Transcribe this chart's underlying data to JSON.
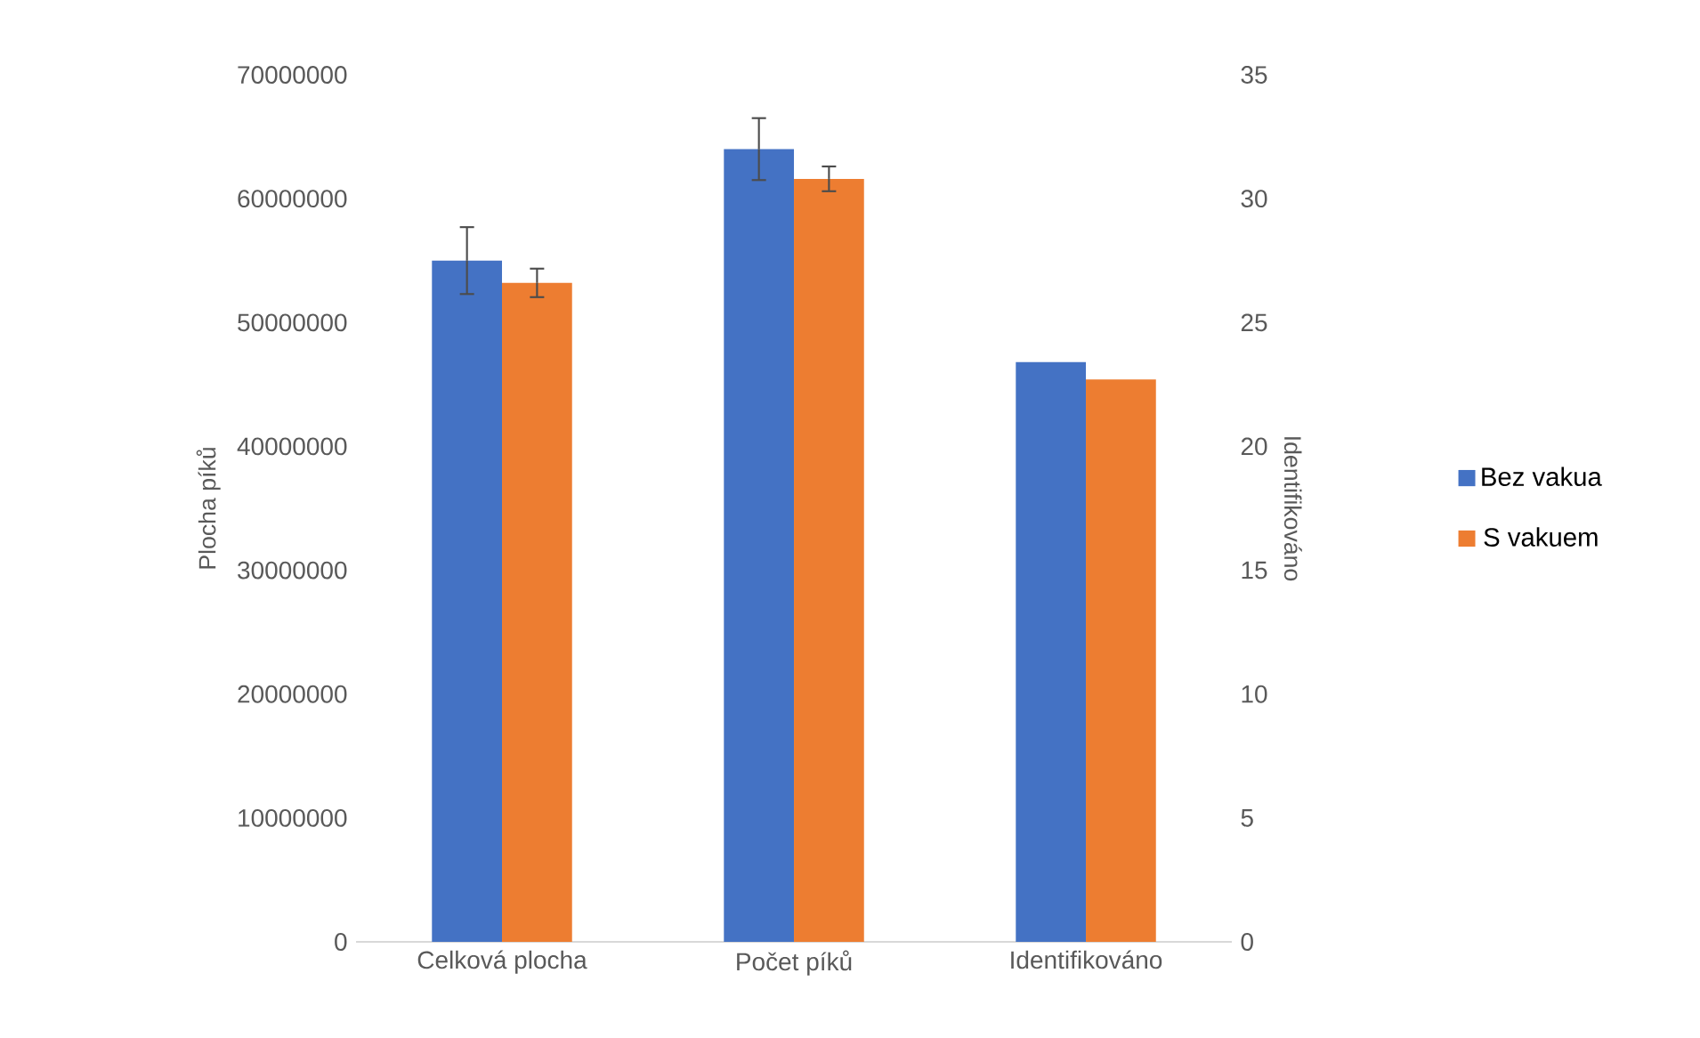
{
  "chart_data": {
    "type": "bar",
    "categories": [
      "Celková plocha",
      "Počet píků",
      "Identifikováno"
    ],
    "series": [
      {
        "name": "Bez vakua",
        "color": "#4472c4",
        "values": [
          55000000,
          null,
          null
        ],
        "errors": [
          2700000,
          null,
          null
        ]
      },
      {
        "name": "S vakuem",
        "color": "#ed7d31",
        "values": [
          53200000,
          null,
          null
        ],
        "errors": [
          1150000,
          null,
          null
        ]
      },
      {
        "color": "#4472c4",
        "axis": "y2",
        "values": [
          null,
          32.0,
          23.4
        ],
        "errors": [
          null,
          1.25,
          null
        ]
      },
      {
        "color": "#ed7d31",
        "axis": "y2",
        "values": [
          null,
          30.8,
          22.7
        ],
        "errors": [
          null,
          0.5,
          null
        ]
      }
    ],
    "ylabel": "Plocha píků",
    "y2label": "Identifikováno",
    "ylim": [
      0,
      70000000
    ],
    "yticks": [
      0,
      10000000,
      20000000,
      30000000,
      40000000,
      50000000,
      60000000,
      70000000
    ],
    "y2lim": [
      0,
      35
    ],
    "y2ticks": [
      0,
      5,
      10,
      15,
      20,
      25,
      30,
      35
    ],
    "legend": "right"
  }
}
